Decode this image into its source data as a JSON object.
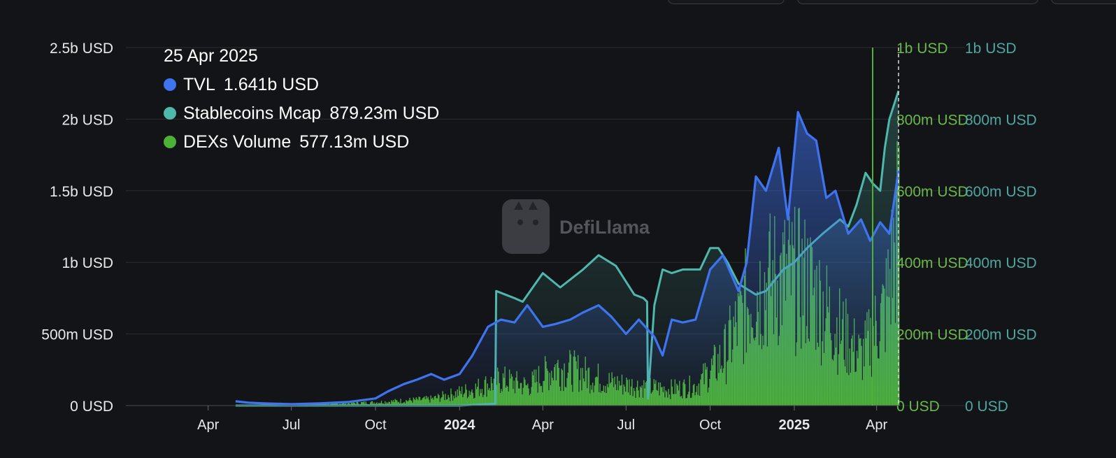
{
  "colors": {
    "background": "#131417",
    "tvl": "#3f74f0",
    "stablecoins": "#4fb8ac",
    "dex": "#4db135",
    "grid": "#2a2c31",
    "tick_text": "#e8e9ea",
    "axis_dex_text": "#6ab84a",
    "axis_stable_text": "#4fa7a0"
  },
  "icons": {
    "watermark": "llama-logo-icon"
  },
  "watermark": "DefiLlama",
  "tooltip": {
    "date": "25 Apr 2025",
    "items": [
      {
        "name": "TVL",
        "value": "1.641b USD",
        "color": "#3f74f0"
      },
      {
        "name": "Stablecoins Mcap",
        "value": "879.23m USD",
        "color": "#4fb8ac"
      },
      {
        "name": "DEXs Volume",
        "value": "577.13m USD",
        "color": "#4db135"
      }
    ]
  },
  "chart_data": {
    "type": "line",
    "x_range": [
      "2023-01-01",
      "2025-04-25"
    ],
    "y_left": {
      "ticks": [
        "0 USD",
        "500m USD",
        "1b USD",
        "1.5b USD",
        "2b USD",
        "2.5b USD"
      ],
      "range": [
        0,
        2500000000
      ]
    },
    "y_right_dex": {
      "ticks": [
        "0 USD",
        "200m USD",
        "400m USD",
        "600m USD",
        "800m USD",
        "1b USD"
      ],
      "range": [
        0,
        1000000000
      ]
    },
    "y_right_stable": {
      "ticks": [
        "0 USD",
        "200m USD",
        "400m USD",
        "600m USD",
        "800m USD",
        "1b USD"
      ],
      "range": [
        0,
        1000000000
      ]
    },
    "x_ticks": [
      {
        "label": "Apr",
        "date": "2023-04-01",
        "bold": false
      },
      {
        "label": "Jul",
        "date": "2023-07-01",
        "bold": false
      },
      {
        "label": "Oct",
        "date": "2023-10-01",
        "bold": false
      },
      {
        "label": "2024",
        "date": "2024-01-01",
        "bold": true
      },
      {
        "label": "Apr",
        "date": "2024-04-01",
        "bold": false
      },
      {
        "label": "Jul",
        "date": "2024-07-01",
        "bold": false
      },
      {
        "label": "Oct",
        "date": "2024-10-01",
        "bold": false
      },
      {
        "label": "2025",
        "date": "2025-01-01",
        "bold": true
      },
      {
        "label": "Apr",
        "date": "2025-04-01",
        "bold": false
      }
    ],
    "grid": true,
    "series": [
      {
        "name": "TVL",
        "axis": "left",
        "x": [
          "2023-05-01",
          "2023-05-15",
          "2023-06-01",
          "2023-07-01",
          "2023-08-01",
          "2023-09-01",
          "2023-10-01",
          "2023-10-15",
          "2023-11-01",
          "2023-11-15",
          "2023-12-01",
          "2023-12-15",
          "2024-01-01",
          "2024-01-15",
          "2024-02-01",
          "2024-02-15",
          "2024-03-01",
          "2024-03-15",
          "2024-04-01",
          "2024-04-15",
          "2024-05-01",
          "2024-05-15",
          "2024-06-01",
          "2024-06-15",
          "2024-07-01",
          "2024-07-15",
          "2024-08-01",
          "2024-08-10",
          "2024-08-20",
          "2024-09-01",
          "2024-09-15",
          "2024-10-01",
          "2024-10-15",
          "2024-11-01",
          "2024-11-10",
          "2024-11-20",
          "2024-12-01",
          "2024-12-15",
          "2024-12-25",
          "2025-01-05",
          "2025-01-15",
          "2025-01-25",
          "2025-02-05",
          "2025-02-15",
          "2025-03-01",
          "2025-03-15",
          "2025-03-25",
          "2025-04-05",
          "2025-04-15",
          "2025-04-25"
        ],
        "values": [
          30000000,
          20000000,
          15000000,
          10000000,
          15000000,
          25000000,
          50000000,
          100000000,
          150000000,
          180000000,
          220000000,
          180000000,
          220000000,
          350000000,
          550000000,
          600000000,
          580000000,
          700000000,
          550000000,
          570000000,
          600000000,
          650000000,
          700000000,
          620000000,
          500000000,
          600000000,
          480000000,
          350000000,
          600000000,
          580000000,
          600000000,
          950000000,
          1050000000,
          800000000,
          1000000000,
          1600000000,
          1500000000,
          1800000000,
          1300000000,
          2050000000,
          1900000000,
          1850000000,
          1450000000,
          1500000000,
          1200000000,
          1300000000,
          1150000000,
          1280000000,
          1200000000,
          1641000000
        ]
      },
      {
        "name": "Stablecoins Mcap",
        "axis": "right",
        "x": [
          "2023-05-01",
          "2023-08-01",
          "2023-11-01",
          "2024-01-01",
          "2024-02-09",
          "2024-02-10",
          "2024-02-20",
          "2024-03-01",
          "2024-03-10",
          "2024-04-01",
          "2024-04-20",
          "2024-05-15",
          "2024-06-01",
          "2024-06-20",
          "2024-07-10",
          "2024-07-20",
          "2024-07-24",
          "2024-07-25",
          "2024-08-01",
          "2024-08-10",
          "2024-08-20",
          "2024-09-01",
          "2024-09-20",
          "2024-10-01",
          "2024-10-10",
          "2024-10-20",
          "2024-11-01",
          "2024-11-20",
          "2024-12-01",
          "2024-12-20",
          "2025-01-01",
          "2025-01-15",
          "2025-02-01",
          "2025-02-20",
          "2025-03-01",
          "2025-03-10",
          "2025-03-20",
          "2025-03-28",
          "2025-04-05",
          "2025-04-10",
          "2025-04-15",
          "2025-04-25"
        ],
        "values": [
          0,
          0,
          0,
          0,
          5000000,
          320000000,
          310000000,
          300000000,
          290000000,
          370000000,
          330000000,
          380000000,
          420000000,
          390000000,
          310000000,
          300000000,
          290000000,
          20000000,
          280000000,
          380000000,
          370000000,
          380000000,
          380000000,
          440000000,
          440000000,
          400000000,
          340000000,
          310000000,
          320000000,
          380000000,
          400000000,
          440000000,
          480000000,
          520000000,
          500000000,
          560000000,
          650000000,
          620000000,
          600000000,
          720000000,
          800000000,
          879230000
        ]
      },
      {
        "name": "DEXs Volume",
        "axis": "right",
        "type": "bar",
        "x": [
          "2023-06-01",
          "2023-08-01",
          "2023-10-01",
          "2023-12-01",
          "2024-01-15",
          "2024-02-15",
          "2024-03-15",
          "2024-04-15",
          "2024-05-15",
          "2024-06-15",
          "2024-07-15",
          "2024-08-15",
          "2024-09-15",
          "2024-10-15",
          "2024-11-15",
          "2024-12-15",
          "2025-01-15",
          "2025-02-15",
          "2025-03-15",
          "2025-04-10",
          "2025-04-25"
        ],
        "values": [
          2000000,
          5000000,
          10000000,
          20000000,
          50000000,
          80000000,
          60000000,
          120000000,
          100000000,
          70000000,
          60000000,
          50000000,
          60000000,
          150000000,
          350000000,
          400000000,
          380000000,
          250000000,
          150000000,
          300000000,
          577130000
        ]
      }
    ]
  }
}
